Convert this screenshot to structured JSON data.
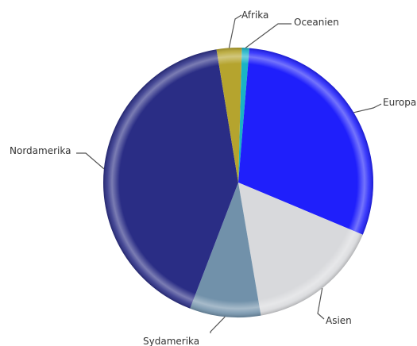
{
  "chart_data": {
    "type": "pie",
    "title": "",
    "slices": [
      {
        "label": "Oceanien",
        "value": 0.9,
        "color": "#19b3c6"
      },
      {
        "label": "Europa",
        "value": 30.0,
        "color": "#1f1ffb"
      },
      {
        "label": "Asien",
        "value": 16.0,
        "color": "#d8d9dc"
      },
      {
        "label": "Sydamerika",
        "value": 8.5,
        "color": "#7191aa"
      },
      {
        "label": "Nordamerika",
        "value": 41.6,
        "color": "#2a2d85"
      },
      {
        "label": "Afrika",
        "value": 3.0,
        "color": "#b5a42e"
      }
    ],
    "start_angle_deg": 1.5,
    "direction": "clockwise",
    "legend": "none",
    "labels": "outside-with-leader-lines"
  }
}
